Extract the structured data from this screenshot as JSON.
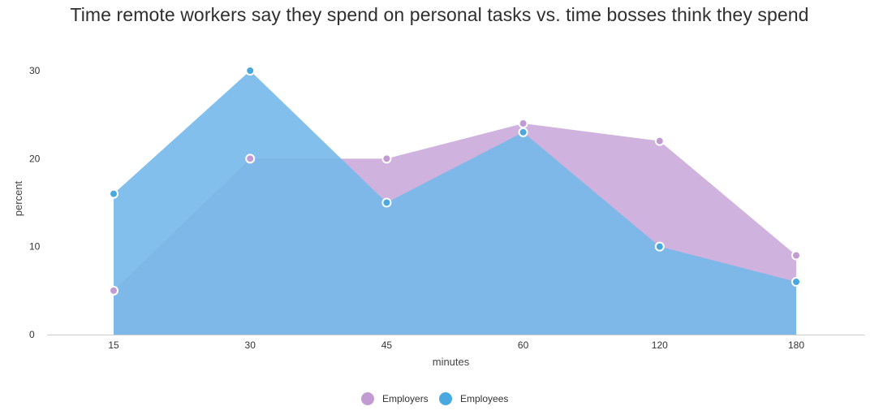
{
  "chart_data": {
    "type": "area",
    "title": "Time remote workers say they spend on personal tasks vs. time bosses think they spend",
    "xlabel": "minutes",
    "ylabel": "percent",
    "categories": [
      "15",
      "30",
      "45",
      "60",
      "120",
      "180"
    ],
    "ylim": [
      0,
      30
    ],
    "yticks": [
      0,
      10,
      20,
      30
    ],
    "series": [
      {
        "name": "Employers",
        "color": "#c39bd3",
        "fill": "#cfb2de",
        "values": [
          5,
          20,
          20,
          24,
          22,
          9
        ]
      },
      {
        "name": "Employees",
        "color": "#4aa8e0",
        "fill": "#74b8ea",
        "values": [
          16,
          30,
          15,
          23,
          10,
          6
        ]
      }
    ],
    "grid": false,
    "legend_position": "bottom"
  }
}
